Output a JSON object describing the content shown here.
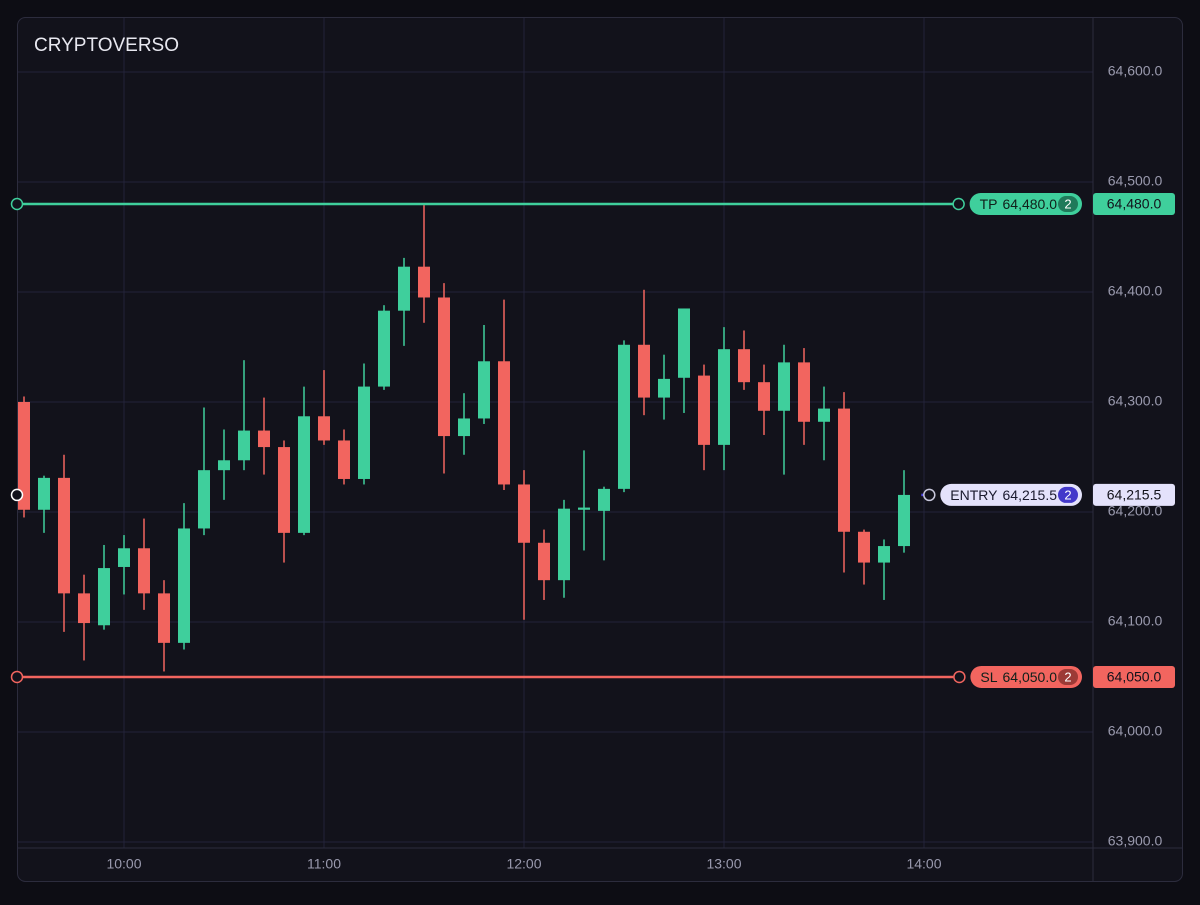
{
  "chart_data": {
    "type": "candlestick",
    "title": "CRYPTOVERSO",
    "x": [
      570,
      576,
      582,
      588,
      594,
      600,
      606,
      612,
      618,
      624,
      630,
      636,
      642,
      648,
      654,
      660,
      666,
      672,
      678,
      684,
      690,
      696,
      702,
      708,
      714,
      720,
      726,
      732,
      738,
      744,
      750,
      756,
      762,
      768,
      774,
      780,
      786,
      792,
      798,
      804,
      810,
      816,
      822,
      828,
      834
    ],
    "open": [
      64300,
      64202,
      64231,
      64126,
      64097,
      64150,
      64167,
      64126,
      64081,
      64185,
      64238,
      64247,
      64274,
      64259,
      64181,
      64287,
      64265,
      64230,
      64314,
      64383,
      64423,
      64395,
      64269,
      64285,
      64337,
      64225,
      64172,
      64138,
      64202,
      64201,
      64221,
      64352,
      64304,
      64322,
      64324,
      64261,
      64348,
      64318,
      64292,
      64336,
      64282,
      64294,
      64182,
      64154,
      64169
    ],
    "high": [
      64305,
      64233,
      64252,
      64143,
      64170,
      64179,
      64194,
      64138,
      64208,
      64295,
      64275,
      64338,
      64304,
      64265,
      64314,
      64329,
      64275,
      64335,
      64388,
      64431,
      64479,
      64408,
      64308,
      64370,
      64393,
      64238,
      64184,
      64211,
      64256,
      64223,
      64356,
      64402,
      64343,
      64385,
      64334,
      64368,
      64365,
      64334,
      64352,
      64349,
      64314,
      64309,
      64184,
      64175,
      64238
    ],
    "low": [
      64195,
      64181,
      64091,
      64065,
      64093,
      64125,
      64111,
      64055,
      64075,
      64179,
      64211,
      64238,
      64234,
      64154,
      64179,
      64261,
      64225,
      64225,
      64311,
      64351,
      64372,
      64235,
      64252,
      64280,
      64220,
      64102,
      64120,
      64122,
      64165,
      64156,
      64218,
      64288,
      64284,
      64290,
      64238,
      64238,
      64311,
      64270,
      64234,
      64261,
      64247,
      64145,
      64134,
      64120,
      64163
    ],
    "close": [
      64202,
      64231,
      64126,
      64099,
      64149,
      64167,
      64126,
      64081,
      64185,
      64238,
      64247,
      64274,
      64259,
      64181,
      64287,
      64265,
      64230,
      64314,
      64383,
      64423,
      64395,
      64269,
      64285,
      64337,
      64225,
      64172,
      64138,
      64203,
      64204,
      64221,
      64352,
      64304,
      64321,
      64385,
      64261,
      64348,
      64318,
      64292,
      64336,
      64282,
      64294,
      64182,
      64154,
      64169,
      64215.5
    ],
    "up_color": "#3fcf9c",
    "down_color": "#f2655f",
    "xlim": [
      567.9,
      890.7
    ],
    "xticks": [
      {
        "value": 600,
        "label": "10:00"
      },
      {
        "value": 660,
        "label": "11:00"
      },
      {
        "value": 720,
        "label": "12:00"
      },
      {
        "value": 780,
        "label": "13:00"
      },
      {
        "value": 840,
        "label": "14:00"
      }
    ],
    "ylim": [
      63894.5,
      64650
    ],
    "yticks": [
      {
        "value": 63900,
        "label": "63,900.0"
      },
      {
        "value": 64000,
        "label": "64,000.0"
      },
      {
        "value": 64100,
        "label": "64,100.0"
      },
      {
        "value": 64200,
        "label": "64,200.0"
      },
      {
        "value": 64300,
        "label": "64,300.0"
      },
      {
        "value": 64400,
        "label": "64,400.0"
      },
      {
        "value": 64500,
        "label": "64,500.0"
      },
      {
        "value": 64600,
        "label": "64,600.0"
      }
    ],
    "grid": true,
    "orders": [
      {
        "name": "TP",
        "price": 64480,
        "price_label": "64,480.0",
        "count": 2,
        "color": "#3fcf9c"
      },
      {
        "name": "ENTRY",
        "price": 64215.5,
        "price_label": "64,215.5",
        "count": 2,
        "color": "#4f46e5"
      },
      {
        "name": "SL",
        "price": 64050,
        "price_label": "64,050.0",
        "count": 2,
        "color": "#f2655f"
      }
    ]
  }
}
